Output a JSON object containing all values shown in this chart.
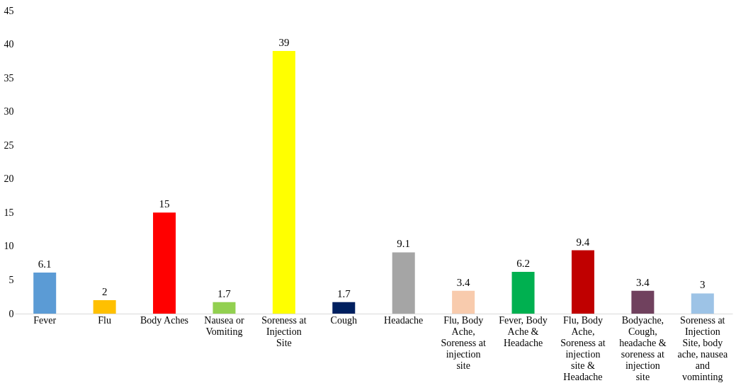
{
  "chart_data": {
    "type": "bar",
    "categories": [
      "Fever",
      "Flu",
      "Body Aches",
      "Nausea or Vomiting",
      "Soreness at Injection Site",
      "Cough",
      "Headache",
      "Flu, Body Ache, Soreness at injection site",
      "Fever, Body Ache & Headache",
      "Flu, Body Ache, Soreness at injection site & Headache",
      "Bodyache, Cough, headache & soreness at injection site",
      "Soreness at Injection Site, body ache, nausea and vominting"
    ],
    "values": [
      6.1,
      2,
      15,
      1.7,
      39,
      1.7,
      9.1,
      3.4,
      6.2,
      9.4,
      3.4,
      3
    ],
    "colors": [
      "#5b9bd5",
      "#ffc000",
      "#ff0000",
      "#92d050",
      "#ffff00",
      "#002060",
      "#a5a5a5",
      "#f8cbad",
      "#00b050",
      "#c00000",
      "#70415e",
      "#9dc3e6"
    ],
    "ylim": [
      0,
      45
    ],
    "yticks": [
      0,
      5,
      10,
      15,
      20,
      25,
      30,
      35,
      40,
      45
    ],
    "data_labels": true,
    "grid": false
  }
}
